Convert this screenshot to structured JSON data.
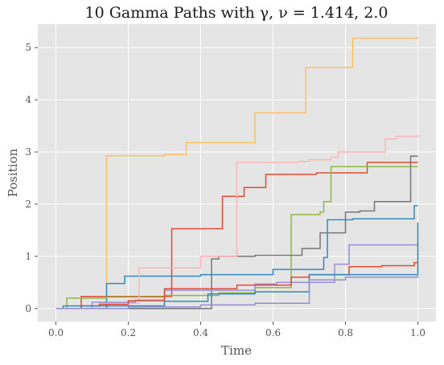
{
  "chart_data": {
    "type": "line",
    "title": "10 Gamma Paths with γ, ν = 1.414, 2.0",
    "xlabel": "Time",
    "ylabel": "Position",
    "xlim": [
      -0.05,
      1.05
    ],
    "ylim": [
      -0.25,
      5.45
    ],
    "xticks": [
      "0.0",
      "0.2",
      "0.4",
      "0.6",
      "0.8",
      "1.0"
    ],
    "yticks": [
      "0",
      "1",
      "2",
      "3",
      "4",
      "5"
    ],
    "grid": true,
    "legend": "none",
    "colors": [
      "#FBC15E",
      "#E24A33",
      "#348ABD",
      "#8EBA42",
      "#777777",
      "#FFB5B8",
      "#988ED5",
      "#E24A33",
      "#348ABD",
      "#988ED5"
    ],
    "series": [
      {
        "x": [
          0,
          0.14,
          0.3,
          0.36,
          0.55,
          0.69,
          0.82,
          1.0
        ],
        "y": [
          0,
          2.93,
          2.95,
          3.18,
          3.75,
          4.62,
          5.18,
          5.2
        ]
      },
      {
        "x": [
          0,
          0.07,
          0.32,
          0.46,
          0.52,
          0.58,
          0.72,
          0.86,
          1.0
        ],
        "y": [
          0,
          0.23,
          1.53,
          2.15,
          2.32,
          2.57,
          2.6,
          2.8,
          2.8
        ]
      },
      {
        "x": [
          0,
          0.14,
          0.19,
          0.4,
          0.6,
          0.74,
          0.75,
          0.82,
          0.99,
          1.0
        ],
        "y": [
          0,
          0.48,
          0.62,
          0.65,
          0.75,
          0.98,
          1.7,
          1.72,
          1.97,
          1.97
        ]
      },
      {
        "x": [
          0,
          0.03,
          0.14,
          0.3,
          0.45,
          0.55,
          0.65,
          0.73,
          0.74,
          0.76,
          1.0
        ],
        "y": [
          0,
          0.2,
          0.22,
          0.25,
          0.3,
          0.4,
          1.8,
          1.85,
          2.05,
          2.72,
          2.72
        ]
      },
      {
        "x": [
          0,
          0.43,
          0.45,
          0.55,
          0.68,
          0.73,
          0.8,
          0.84,
          0.88,
          0.98,
          1.0
        ],
        "y": [
          0,
          0.95,
          1.0,
          1.02,
          1.15,
          1.45,
          1.85,
          1.87,
          2.05,
          2.92,
          2.92
        ]
      },
      {
        "x": [
          0,
          0.12,
          0.23,
          0.4,
          0.5,
          0.52,
          0.67,
          0.7,
          0.76,
          0.78,
          0.91,
          0.94,
          1.0
        ],
        "y": [
          0,
          0.1,
          0.78,
          1.0,
          2.8,
          2.8,
          2.82,
          2.85,
          2.9,
          3.0,
          3.25,
          3.3,
          3.32
        ]
      },
      {
        "x": [
          0,
          0.1,
          0.22,
          0.3,
          0.55,
          0.61,
          0.77,
          0.81,
          1.0
        ],
        "y": [
          0,
          0.12,
          0.16,
          0.35,
          0.47,
          0.5,
          0.85,
          1.22,
          1.25
        ]
      },
      {
        "x": [
          0,
          0.07,
          0.12,
          0.2,
          0.3,
          0.5,
          0.65,
          0.7,
          0.81,
          0.9,
          0.99,
          1.0
        ],
        "y": [
          0,
          0.05,
          0.08,
          0.15,
          0.38,
          0.45,
          0.6,
          0.65,
          0.8,
          0.82,
          0.88,
          0.88
        ]
      },
      {
        "x": [
          0,
          0.02,
          0.3,
          0.42,
          0.55,
          0.7,
          1.0
        ],
        "y": [
          0,
          0.05,
          0.14,
          0.28,
          0.32,
          0.65,
          1.65
        ]
      },
      {
        "x": [
          0,
          0.2,
          0.4,
          0.55,
          0.7,
          0.8,
          1.0
        ],
        "y": [
          0,
          0.03,
          0.07,
          0.1,
          0.55,
          0.6,
          0.67
        ]
      }
    ]
  }
}
